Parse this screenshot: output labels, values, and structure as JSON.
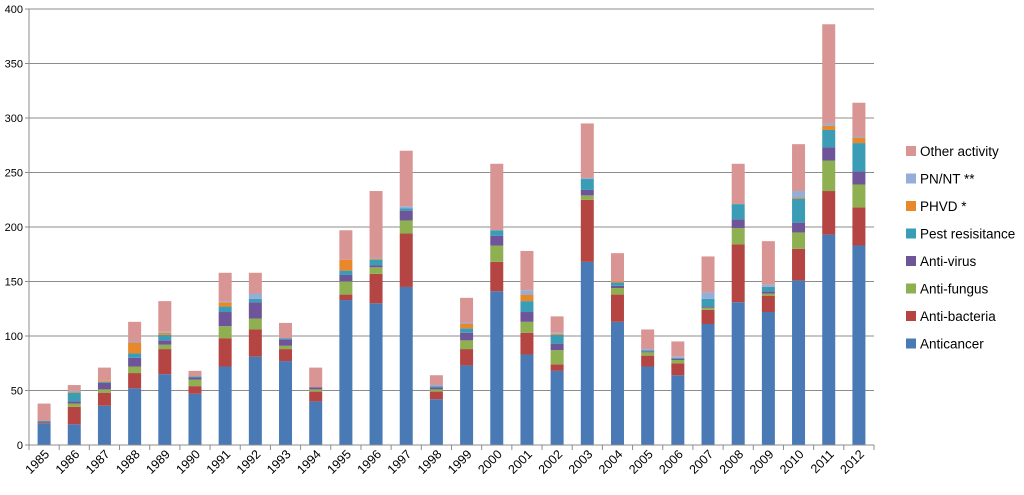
{
  "chart_data": {
    "type": "bar",
    "stacked": true,
    "title": "",
    "xlabel": "",
    "ylabel": "",
    "ylim": [
      0,
      400
    ],
    "yticks": [
      0,
      50,
      100,
      150,
      200,
      250,
      300,
      350,
      400
    ],
    "grid": true,
    "legend_position": "right",
    "categories": [
      "1985",
      "1986",
      "1987",
      "1988",
      "1989",
      "1990",
      "1991",
      "1992",
      "1993",
      "1994",
      "1995",
      "1996",
      "1997",
      "1998",
      "1999",
      "2000",
      "2001",
      "2002",
      "2003",
      "2004",
      "2005",
      "2006",
      "2007",
      "2008",
      "2009",
      "2010",
      "2011",
      "2012"
    ],
    "series": [
      {
        "name": "Anticancer",
        "color": "#4a7ab5",
        "values": [
          20,
          19,
          36,
          52,
          65,
          47,
          72,
          81,
          77,
          40,
          133,
          130,
          145,
          42,
          73,
          141,
          83,
          68,
          168,
          113,
          72,
          64,
          111,
          131,
          122,
          151,
          193,
          183
        ]
      },
      {
        "name": "Anti-bacteria",
        "color": "#b54543",
        "values": [
          1,
          16,
          12,
          14,
          23,
          7,
          26,
          25,
          11,
          9,
          5,
          27,
          49,
          7,
          15,
          27,
          20,
          6,
          57,
          25,
          10,
          11,
          13,
          53,
          15,
          29,
          40,
          35
        ]
      },
      {
        "name": "Anti-fungus",
        "color": "#8fb050",
        "values": [
          0,
          3,
          3,
          6,
          4,
          6,
          11,
          10,
          3,
          2,
          12,
          6,
          12,
          2,
          8,
          15,
          10,
          13,
          4,
          6,
          3,
          3,
          2,
          15,
          2,
          15,
          28,
          21
        ]
      },
      {
        "name": "Anti-virus",
        "color": "#6e559a",
        "values": [
          0,
          2,
          6,
          8,
          4,
          2,
          13,
          15,
          6,
          2,
          6,
          2,
          9,
          2,
          7,
          9,
          9,
          6,
          5,
          2,
          1,
          1,
          1,
          8,
          2,
          9,
          12,
          12
        ]
      },
      {
        "name": "Pest resisitance",
        "color": "#3a9db5",
        "values": [
          1,
          8,
          1,
          4,
          5,
          1,
          5,
          3,
          1,
          0,
          4,
          5,
          2,
          1,
          4,
          5,
          10,
          8,
          10,
          3,
          1,
          1,
          7,
          14,
          4,
          22,
          16,
          26
        ]
      },
      {
        "name": "PHVD *",
        "color": "#e9872b",
        "values": [
          0,
          1,
          1,
          10,
          2,
          0,
          4,
          0,
          0,
          0,
          10,
          1,
          0,
          0,
          4,
          0,
          6,
          1,
          0,
          1,
          0,
          0,
          0,
          0,
          0,
          1,
          4,
          5
        ]
      },
      {
        "name": "PN/NT **",
        "color": "#94aed8",
        "values": [
          0,
          1,
          0,
          1,
          1,
          0,
          1,
          5,
          0,
          0,
          0,
          1,
          2,
          1,
          1,
          0,
          4,
          1,
          1,
          0,
          1,
          1,
          6,
          0,
          2,
          6,
          2,
          1
        ]
      },
      {
        "name": "Other activity",
        "color": "#d89593",
        "values": [
          16,
          5,
          12,
          18,
          28,
          5,
          26,
          19,
          14,
          18,
          27,
          61,
          51,
          9,
          23,
          61,
          36,
          15,
          50,
          26,
          18,
          14,
          33,
          37,
          40,
          43,
          91,
          31
        ]
      }
    ]
  }
}
